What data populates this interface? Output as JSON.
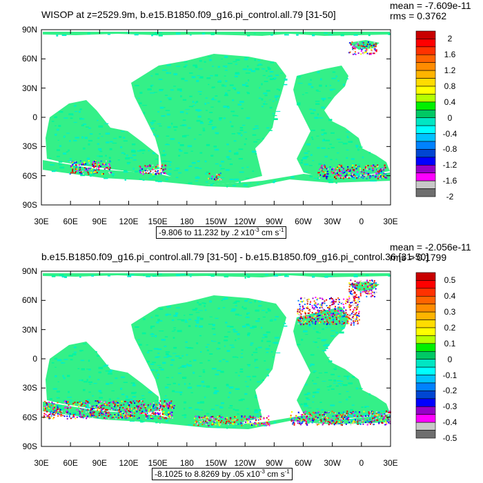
{
  "palette": [
    "#6e6e6e",
    "#c8c8c8",
    "#ff00ff",
    "#9600c8",
    "#0000ff",
    "#0046d2",
    "#0082ff",
    "#00c3ff",
    "#00ffff",
    "#00e6c3",
    "#00c864",
    "#00f000",
    "#b4ff00",
    "#ffff00",
    "#ffdc00",
    "#ffb400",
    "#ff8c00",
    "#ff6400",
    "#ff3200",
    "#ff0000",
    "#c80000"
  ],
  "land_color": "#ffffff",
  "ocean_base_color": "#34f088",
  "panels": [
    {
      "title": "WISOP at z=2529.9m, b.e15.B1850.f09_g16.pi_control.all.79 [31-50]",
      "mean": "mean = -7.609e-11",
      "rms": "rms = 0.3762",
      "range_pre": "-9.806 to 11.232 by .2 x10",
      "range_exp": "-3",
      "range_post": " cm s",
      "range_exp2": "-1",
      "colorbar_labels": [
        "2",
        "1.6",
        "1.2",
        "0.8",
        "0.4",
        "0",
        "-0.4",
        "-0.8",
        "-1.2",
        "-1.6",
        "-2"
      ],
      "lat_labels": [
        "90N",
        "60N",
        "30N",
        "0",
        "30S",
        "60S",
        "90S"
      ],
      "lon_labels": [
        "30E",
        "60E",
        "90E",
        "120E",
        "150E",
        "180",
        "150W",
        "120W",
        "90W",
        "60W",
        "30W",
        "0",
        "30E"
      ]
    },
    {
      "title": "b.e15.B1850.f09_g16.pi_control.all.79 [31-50] - b.e15.B1850.f09_g16.pi_control.36 [31-50]",
      "mean": "mean = -2.056e-11",
      "rms": "rms = 0.1799",
      "range_pre": "-8.1025 to 8.8269 by .05 x10",
      "range_exp": "-3",
      "range_post": " cm s",
      "range_exp2": "-1",
      "colorbar_labels": [
        "0.5",
        "0.4",
        "0.3",
        "0.2",
        "0.1",
        "0",
        "-0.1",
        "-0.2",
        "-0.3",
        "-0.4",
        "-0.5"
      ],
      "lat_labels": [
        "90N",
        "60N",
        "30N",
        "0",
        "30S",
        "60S",
        "90S"
      ],
      "lon_labels": [
        "30E",
        "60E",
        "90E",
        "120E",
        "150E",
        "180",
        "150W",
        "120W",
        "90W",
        "60W",
        "30W",
        "0",
        "30E"
      ]
    }
  ]
}
